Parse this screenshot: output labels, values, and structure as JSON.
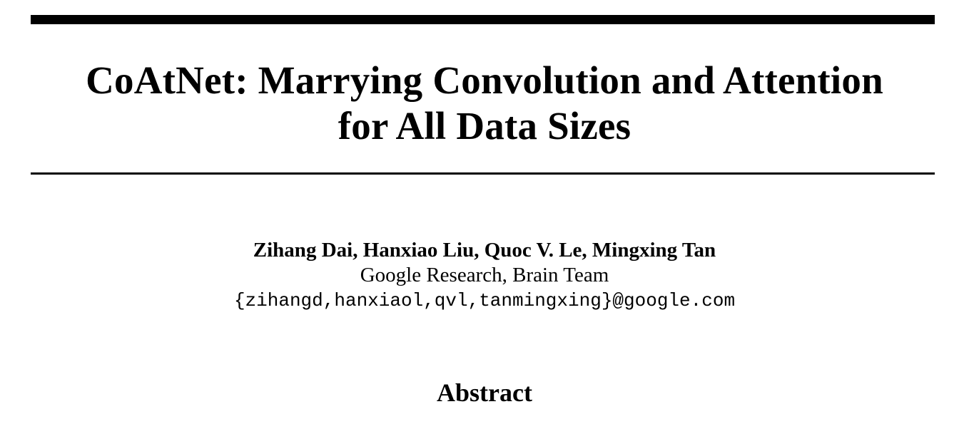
{
  "paper": {
    "title_lines": [
      "CoAtNet: Marrying Convolution and Attention",
      "for All Data Sizes"
    ],
    "authors": "Zihang Dai, Hanxiao Liu, Quoc V. Le, Mingxing Tan",
    "affiliation": "Google Research, Brain Team",
    "emails": "{zihangd,hanxiaol,qvl,tanmingxing}@google.com",
    "abstract_heading": "Abstract"
  }
}
